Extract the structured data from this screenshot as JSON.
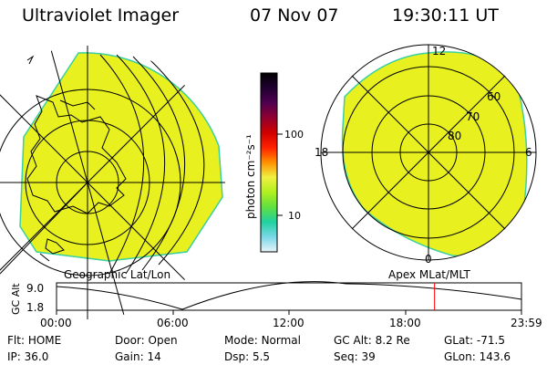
{
  "header": {
    "instrument": "Ultraviolet Imager",
    "date": "07 Nov 07",
    "time": "19:30:11 UT"
  },
  "left_panel": {
    "label": "Geographic Lat/Lon",
    "fill_color": "#e8f020",
    "rim_color": "#3ad0a0"
  },
  "right_panel": {
    "label": "Apex MLat/MLT",
    "fill_color": "#e8f020",
    "rim_color": "#3ad0a0",
    "mlt_labels": {
      "top": "12",
      "bottom": "0",
      "left": "18",
      "right": "6"
    },
    "lat_labels": [
      "60",
      "70",
      "80"
    ]
  },
  "colorbar": {
    "unit_label": "photon cm⁻²s⁻¹",
    "tick_labels": [
      "100",
      "10"
    ],
    "stops": [
      "#e8f4f8",
      "#7ad8e8",
      "#20d0a0",
      "#60e040",
      "#b0f020",
      "#f0f040",
      "#ff9000",
      "#ff2000",
      "#d00000",
      "#900030",
      "#500050",
      "#200030",
      "#000000"
    ]
  },
  "timeline": {
    "axis_label": "GC Alt",
    "y_ticks": [
      "9.0",
      "1.8"
    ],
    "x_ticks": [
      "00:00",
      "06:00",
      "12:00",
      "18:00",
      "23:59"
    ],
    "marker_time": "19:30",
    "marker_color": "#ff0000"
  },
  "status": {
    "row1": [
      {
        "key": "Flt:",
        "value": "HOME"
      },
      {
        "key": "Door:",
        "value": "Open"
      },
      {
        "key": "Mode:",
        "value": "Normal"
      },
      {
        "key": "GC Alt:",
        "value": "8.2 Re"
      },
      {
        "key": "GLat:",
        "value": "-71.5"
      }
    ],
    "row2": [
      {
        "key": "IP:",
        "value": "36.0"
      },
      {
        "key": "Gain:",
        "value": "14"
      },
      {
        "key": "Dsp:",
        "value": "5.5"
      },
      {
        "key": "Seq:",
        "value": "39"
      },
      {
        "key": "GLon:",
        "value": "143.6"
      }
    ]
  }
}
